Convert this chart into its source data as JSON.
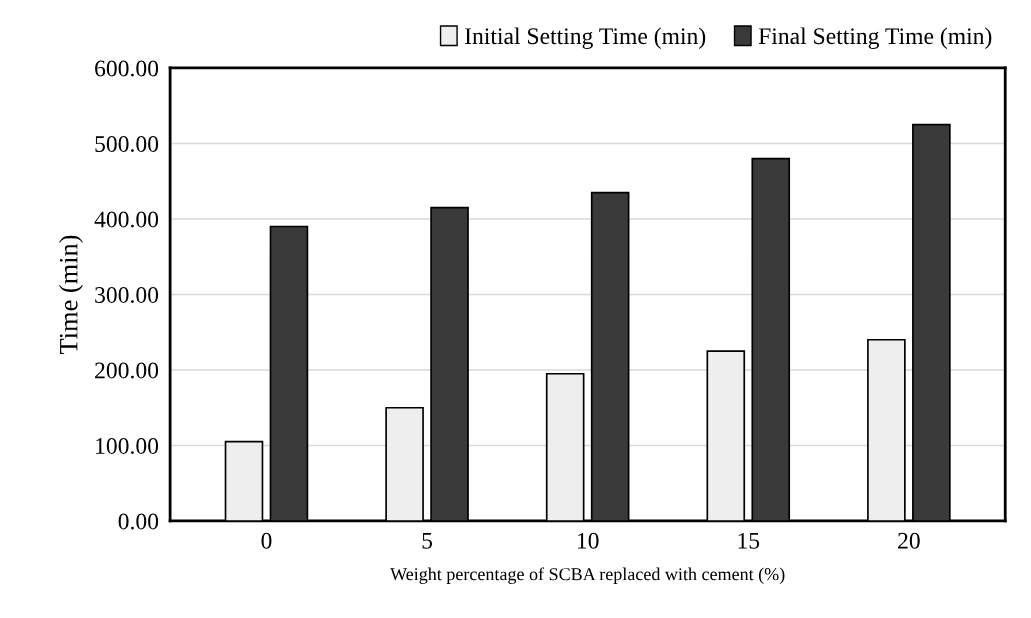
{
  "chart_data": {
    "type": "bar",
    "xlabel": "Weight percentage of SCBA replaced with cement (%)",
    "ylabel": "Time (min)",
    "categories": [
      "0",
      "5",
      "10",
      "15",
      "20"
    ],
    "series": [
      {
        "name": "Initial Setting Time (min)",
        "color": "#eeeeee",
        "values": [
          105,
          150,
          195,
          225,
          240
        ]
      },
      {
        "name": "Final Setting Time (min)",
        "color": "#3a3a3a",
        "values": [
          390,
          415,
          435,
          480,
          525
        ]
      }
    ],
    "ylim": [
      0,
      600
    ],
    "yticks": [
      {
        "value": 0,
        "label": "0.00"
      },
      {
        "value": 100,
        "label": "100.00"
      },
      {
        "value": 200,
        "label": "200.00"
      },
      {
        "value": 300,
        "label": "300.00"
      },
      {
        "value": 400,
        "label": "400.00"
      },
      {
        "value": 500,
        "label": "500.00"
      },
      {
        "value": 600,
        "label": "600.00"
      }
    ],
    "grid": "y",
    "legend": "top right"
  }
}
